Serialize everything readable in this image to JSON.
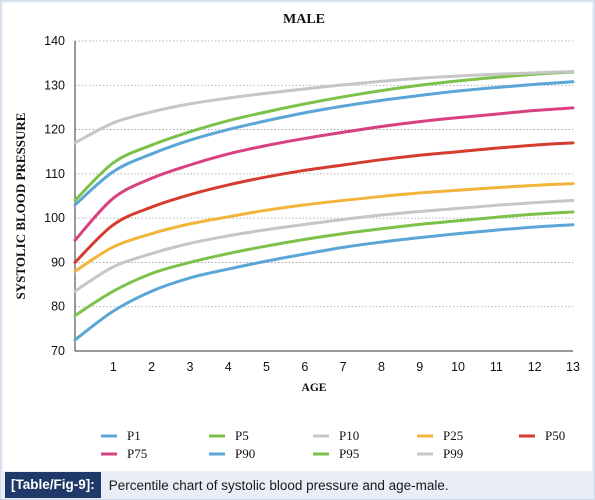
{
  "chart_data": {
    "type": "line",
    "title": "MALE",
    "xlabel": "AGE",
    "ylabel": "SYSTOLIC BLOOD PRESSURE",
    "xlim": [
      0,
      13
    ],
    "ylim": [
      70,
      140
    ],
    "xticks": [
      1,
      2,
      3,
      4,
      5,
      6,
      7,
      8,
      9,
      10,
      11,
      12,
      13
    ],
    "yticks": [
      70,
      80,
      90,
      100,
      110,
      120,
      130,
      140
    ],
    "grid": "horizontal dotted",
    "legend_position": "bottom",
    "x": [
      0,
      1,
      2,
      3,
      4,
      5,
      6,
      7,
      8,
      9,
      10,
      11,
      12,
      13
    ],
    "series": [
      {
        "name": "P1",
        "color": "#5aa6d6",
        "values": [
          72.5,
          79,
          83.5,
          86.5,
          88.5,
          90.3,
          91.9,
          93.4,
          94.6,
          95.6,
          96.5,
          97.3,
          98,
          98.5
        ]
      },
      {
        "name": "P5",
        "color": "#7cc24a",
        "values": [
          78,
          83.5,
          87.5,
          90,
          92,
          93.7,
          95.2,
          96.5,
          97.6,
          98.6,
          99.4,
          100.2,
          100.9,
          101.4
        ]
      },
      {
        "name": "P10",
        "color": "#c6c6c6",
        "values": [
          83.5,
          89,
          92,
          94.3,
          96,
          97.4,
          98.6,
          99.7,
          100.7,
          101.5,
          102.2,
          102.9,
          103.5,
          104
        ]
      },
      {
        "name": "P25",
        "color": "#f2b43a",
        "values": [
          88,
          93.5,
          96.5,
          98.7,
          100.3,
          101.8,
          103,
          104,
          104.9,
          105.7,
          106.3,
          106.9,
          107.4,
          107.8
        ]
      },
      {
        "name": "P50",
        "color": "#d63b2f",
        "values": [
          90,
          98.5,
          102.5,
          105.3,
          107.5,
          109.3,
          110.8,
          112,
          113.2,
          114.2,
          115,
          115.8,
          116.5,
          117
        ]
      },
      {
        "name": "P75",
        "color": "#d9407f",
        "values": [
          95,
          104.5,
          109,
          112,
          114.5,
          116.4,
          118,
          119.4,
          120.7,
          121.8,
          122.7,
          123.5,
          124.3,
          124.9
        ]
      },
      {
        "name": "P90",
        "color": "#5aa6d6",
        "values": [
          103,
          110.5,
          114.5,
          117.6,
          120,
          122,
          123.8,
          125.3,
          126.6,
          127.7,
          128.7,
          129.5,
          130.2,
          130.8
        ]
      },
      {
        "name": "P95",
        "color": "#7cc24a",
        "values": [
          104,
          112.5,
          116.5,
          119.5,
          122,
          124,
          125.8,
          127.4,
          128.8,
          130,
          131,
          131.8,
          132.5,
          133
        ]
      },
      {
        "name": "P99",
        "color": "#c6c6c6",
        "values": [
          117,
          121.5,
          124,
          125.8,
          127.1,
          128.2,
          129.2,
          130.1,
          130.9,
          131.6,
          132.1,
          132.5,
          132.8,
          133.1
        ]
      }
    ]
  },
  "caption": {
    "tag": "[Table/Fig-9]:",
    "text": "Percentile chart of systolic blood pressure and age-male."
  }
}
